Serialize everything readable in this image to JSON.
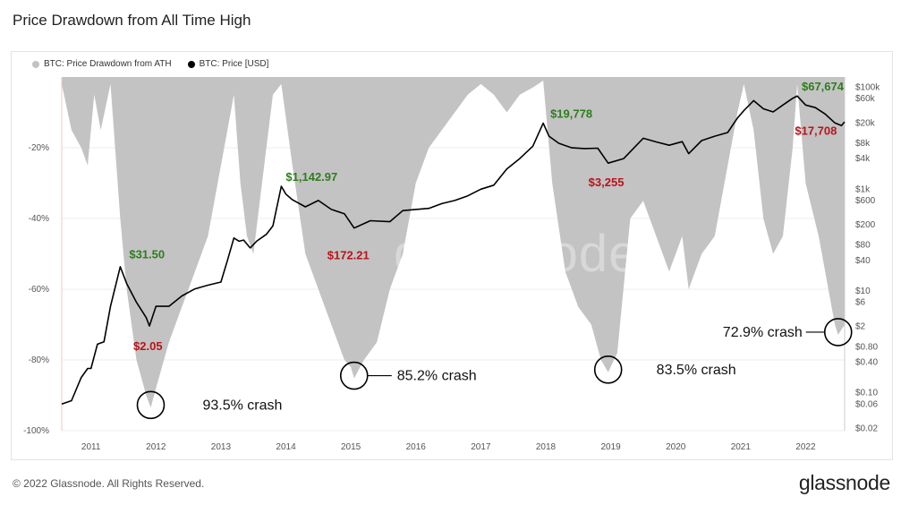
{
  "title": "Price Drawdown from All Time High",
  "footer": {
    "copyright": "© 2022 Glassnode. All Rights Reserved.",
    "logo": "glassnode"
  },
  "watermark": "glassnode",
  "colors": {
    "drawdown": "#c3c3c3",
    "price": "#000000",
    "ath_label": "#2e7d1e",
    "low_label": "#b8141c",
    "axis": "#555555"
  },
  "chart_data": {
    "type": "area",
    "legend": [
      "BTC: Price Drawdown from ATH",
      "BTC: Price [USD]"
    ],
    "legend_position": "top-left",
    "x_ticks": [
      "2011",
      "2012",
      "2013",
      "2014",
      "2015",
      "2016",
      "2017",
      "2018",
      "2019",
      "2020",
      "2021",
      "2022"
    ],
    "xlim": [
      2010.55,
      2022.6
    ],
    "y_left": {
      "ticks": [
        "-20%",
        "-40%",
        "-60%",
        "-80%",
        "-100%"
      ],
      "tick_values": [
        -20,
        -40,
        -60,
        -80,
        -100
      ],
      "range": [
        0,
        -100
      ]
    },
    "y_right": {
      "scale": "log",
      "ticks": [
        "$100k",
        "$60k",
        "$20k",
        "$8k",
        "$4k",
        "$1k",
        "$600",
        "$200",
        "$80",
        "$40",
        "$10",
        "$6",
        "$2",
        "$0.80",
        "$0.40",
        "$0.10",
        "$0.06",
        "$0.02"
      ],
      "tick_values": [
        100000,
        60000,
        20000,
        8000,
        4000,
        1000,
        600,
        200,
        80,
        40,
        10,
        6,
        2,
        0.8,
        0.4,
        0.1,
        0.06,
        0.02
      ],
      "range": [
        0.018,
        160000
      ]
    },
    "series": [
      {
        "name": "BTC: Price Drawdown from ATH",
        "x": [
          2010.55,
          2010.7,
          2010.85,
          2010.95,
          2011.05,
          2011.15,
          2011.3,
          2011.45,
          2011.55,
          2011.7,
          2011.85,
          2011.92,
          2012.0,
          2012.2,
          2012.4,
          2012.6,
          2012.8,
          2012.95,
          2013.1,
          2013.2,
          2013.3,
          2013.4,
          2013.5,
          2013.7,
          2013.8,
          2013.93,
          2014.1,
          2014.3,
          2014.5,
          2014.7,
          2014.9,
          2015.0,
          2015.05,
          2015.2,
          2015.4,
          2015.6,
          2015.8,
          2016.0,
          2016.2,
          2016.4,
          2016.6,
          2016.8,
          2017.0,
          2017.2,
          2017.4,
          2017.6,
          2017.8,
          2017.96,
          2018.1,
          2018.3,
          2018.5,
          2018.7,
          2018.85,
          2018.96,
          2019.1,
          2019.3,
          2019.5,
          2019.7,
          2019.9,
          2020.1,
          2020.2,
          2020.4,
          2020.6,
          2020.8,
          2020.95,
          2021.05,
          2021.2,
          2021.35,
          2021.5,
          2021.65,
          2021.8,
          2021.87,
          2022.0,
          2022.2,
          2022.35,
          2022.45,
          2022.5,
          2022.6
        ],
        "values": [
          -2,
          -15,
          -20,
          -25,
          -5,
          -15,
          -2,
          -40,
          -60,
          -80,
          -90,
          -93.5,
          -88,
          -75,
          -65,
          -55,
          -45,
          -30,
          -15,
          -5,
          -30,
          -45,
          -50,
          -20,
          -5,
          -2,
          -25,
          -50,
          -60,
          -70,
          -80,
          -82,
          -85.2,
          -80,
          -75,
          -60,
          -50,
          -30,
          -20,
          -15,
          -10,
          -5,
          -2,
          -5,
          -10,
          -5,
          -3,
          -1,
          -30,
          -55,
          -65,
          -70,
          -80,
          -83.5,
          -78,
          -40,
          -35,
          -45,
          -55,
          -45,
          -60,
          -50,
          -45,
          -25,
          -10,
          -2,
          -15,
          -40,
          -50,
          -45,
          -20,
          -2,
          -30,
          -45,
          -60,
          -70,
          -72.9,
          -70
        ]
      },
      {
        "name": "BTC: Price [USD]",
        "x": [
          2010.55,
          2010.7,
          2010.85,
          2010.95,
          2011.0,
          2011.1,
          2011.2,
          2011.3,
          2011.45,
          2011.55,
          2011.7,
          2011.85,
          2011.9,
          2012.0,
          2012.2,
          2012.4,
          2012.6,
          2012.8,
          2013.0,
          2013.1,
          2013.2,
          2013.28,
          2013.35,
          2013.45,
          2013.55,
          2013.7,
          2013.8,
          2013.93,
          2014.0,
          2014.1,
          2014.3,
          2014.5,
          2014.7,
          2014.9,
          2015.05,
          2015.3,
          2015.6,
          2015.8,
          2016.0,
          2016.2,
          2016.4,
          2016.6,
          2016.8,
          2017.0,
          2017.2,
          2017.4,
          2017.6,
          2017.8,
          2017.96,
          2018.05,
          2018.2,
          2018.4,
          2018.6,
          2018.8,
          2018.96,
          2019.2,
          2019.5,
          2019.7,
          2019.9,
          2020.1,
          2020.2,
          2020.4,
          2020.6,
          2020.8,
          2020.95,
          2021.05,
          2021.2,
          2021.35,
          2021.5,
          2021.65,
          2021.8,
          2021.87,
          2022.0,
          2022.15,
          2022.3,
          2022.45,
          2022.55,
          2022.6
        ],
        "values": [
          0.06,
          0.07,
          0.2,
          0.3,
          0.3,
          0.9,
          1,
          5,
          30,
          14,
          6,
          3,
          2.05,
          5,
          5,
          8,
          11,
          13,
          15,
          40,
          110,
          95,
          100,
          70,
          95,
          130,
          190,
          1142.97,
          800,
          620,
          450,
          600,
          400,
          330,
          172.21,
          240,
          230,
          380,
          400,
          420,
          520,
          600,
          740,
          1000,
          1200,
          2500,
          4000,
          7000,
          19778,
          11000,
          8000,
          6500,
          6300,
          6400,
          3255,
          4000,
          10000,
          8500,
          7300,
          8600,
          5000,
          9000,
          11000,
          13000,
          25000,
          35000,
          55000,
          38000,
          33000,
          45000,
          61000,
          67674,
          45000,
          40000,
          30000,
          20000,
          17708,
          21000
        ]
      }
    ],
    "annotations": {
      "ath": [
        {
          "text": "$31.50",
          "x": 2011.45,
          "value": 31.5
        },
        {
          "text": "$1,142.97",
          "x": 2013.93,
          "value": 1142.97
        },
        {
          "text": "$19,778",
          "x": 2017.96,
          "value": 19778
        },
        {
          "text": "$67,674",
          "x": 2021.87,
          "value": 67674
        }
      ],
      "lows": [
        {
          "text": "$2.05",
          "x": 2011.9,
          "value": 2.05
        },
        {
          "text": "$172.21",
          "x": 2015.05,
          "value": 172.21
        },
        {
          "text": "$3,255",
          "x": 2018.96,
          "value": 3255
        },
        {
          "text": "$17,708",
          "x": 2022.55,
          "value": 17708
        }
      ],
      "crashes": [
        {
          "text": "93.5% crash",
          "x": 2011.92,
          "drawdown": -93.5
        },
        {
          "text": "85.2% crash",
          "x": 2015.05,
          "drawdown": -85.2
        },
        {
          "text": "83.5% crash",
          "x": 2018.96,
          "drawdown": -83.5
        },
        {
          "text": "72.9% crash",
          "x": 2022.5,
          "drawdown": -72.9
        }
      ]
    }
  }
}
